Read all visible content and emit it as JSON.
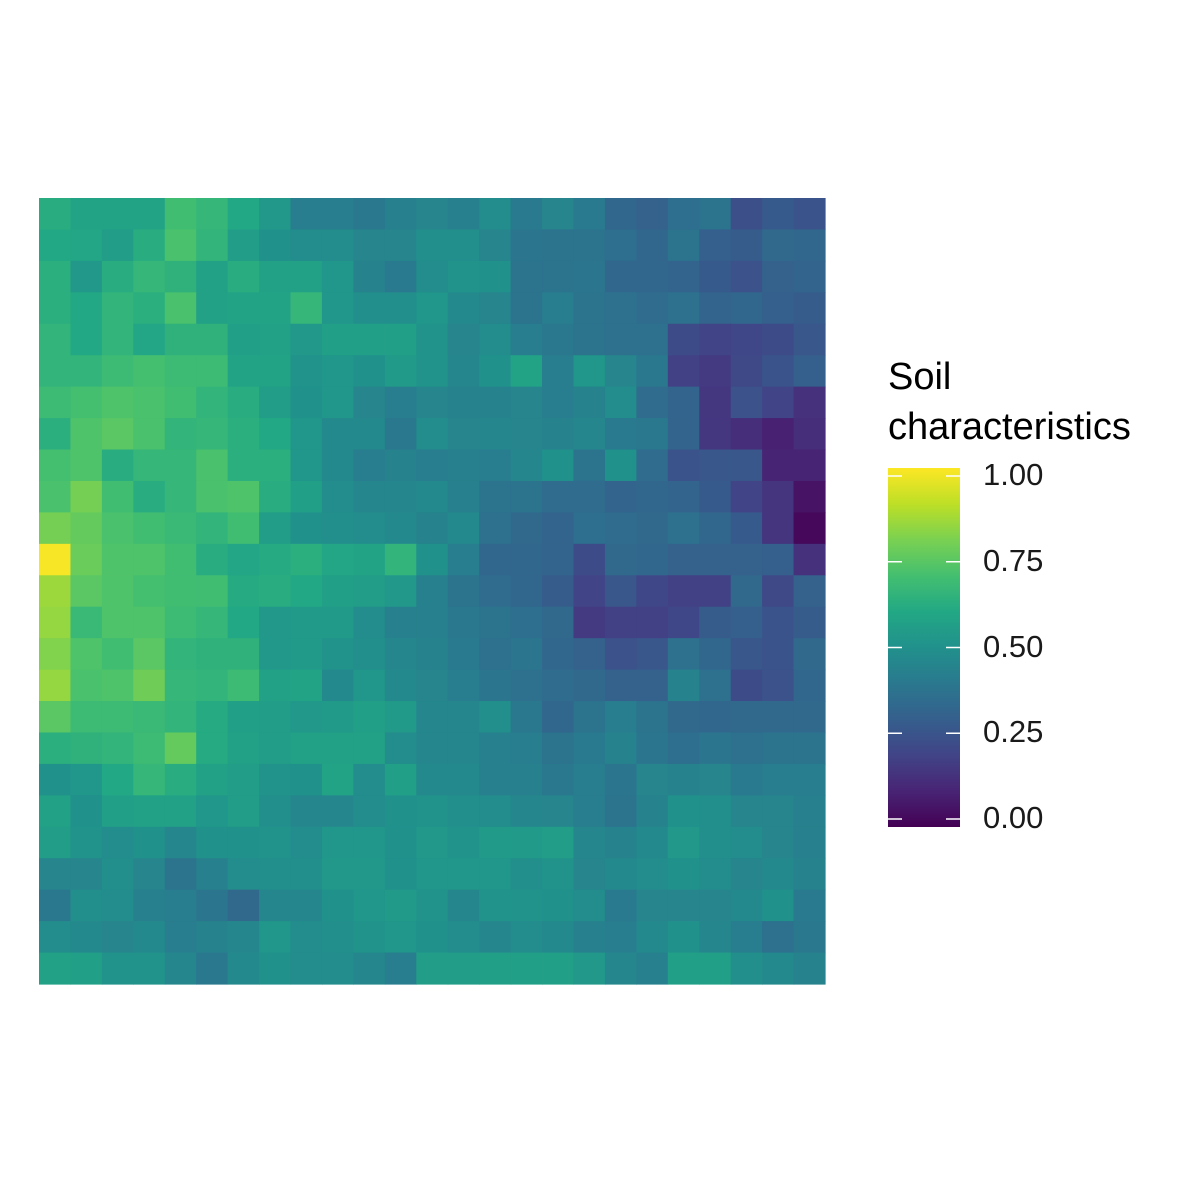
{
  "chart_data": {
    "type": "heatmap",
    "title": "",
    "xlabel": "",
    "ylabel": "",
    "grid": false,
    "legend": {
      "title_lines": [
        "Soil",
        "characteristics"
      ],
      "placement": "right",
      "ticks": [
        0.0,
        0.25,
        0.5,
        0.75,
        1.0
      ],
      "tick_labels": [
        "0.00",
        "0.25",
        "0.50",
        "0.75",
        "1.00"
      ],
      "range": [
        0,
        1
      ]
    },
    "colormap": [
      "#440154",
      "#482475",
      "#414487",
      "#355f8d",
      "#2a788e",
      "#21918c",
      "#22a884",
      "#44bf70",
      "#7ad151",
      "#bddf26",
      "#fde725"
    ],
    "n_cols": 25,
    "n_rows": 25,
    "values": [
      [
        0.62,
        0.58,
        0.58,
        0.58,
        0.69,
        0.66,
        0.6,
        0.53,
        0.42,
        0.42,
        0.4,
        0.43,
        0.45,
        0.43,
        0.48,
        0.41,
        0.45,
        0.41,
        0.33,
        0.31,
        0.36,
        0.38,
        0.24,
        0.28,
        0.26
      ],
      [
        0.6,
        0.59,
        0.55,
        0.62,
        0.71,
        0.65,
        0.55,
        0.5,
        0.48,
        0.48,
        0.45,
        0.45,
        0.49,
        0.49,
        0.45,
        0.39,
        0.38,
        0.38,
        0.36,
        0.33,
        0.38,
        0.3,
        0.29,
        0.34,
        0.33
      ],
      [
        0.63,
        0.53,
        0.62,
        0.66,
        0.64,
        0.57,
        0.62,
        0.57,
        0.57,
        0.52,
        0.44,
        0.41,
        0.48,
        0.51,
        0.5,
        0.38,
        0.38,
        0.39,
        0.33,
        0.33,
        0.32,
        0.28,
        0.25,
        0.31,
        0.32
      ],
      [
        0.63,
        0.6,
        0.65,
        0.63,
        0.71,
        0.57,
        0.58,
        0.58,
        0.66,
        0.52,
        0.49,
        0.49,
        0.52,
        0.47,
        0.45,
        0.38,
        0.42,
        0.38,
        0.37,
        0.35,
        0.37,
        0.32,
        0.33,
        0.3,
        0.29
      ],
      [
        0.65,
        0.6,
        0.65,
        0.59,
        0.64,
        0.64,
        0.56,
        0.57,
        0.53,
        0.56,
        0.56,
        0.56,
        0.51,
        0.45,
        0.48,
        0.42,
        0.4,
        0.38,
        0.37,
        0.37,
        0.23,
        0.2,
        0.21,
        0.23,
        0.27
      ],
      [
        0.65,
        0.65,
        0.68,
        0.7,
        0.68,
        0.68,
        0.58,
        0.58,
        0.51,
        0.52,
        0.5,
        0.54,
        0.51,
        0.46,
        0.5,
        0.58,
        0.42,
        0.52,
        0.45,
        0.4,
        0.19,
        0.17,
        0.22,
        0.26,
        0.3
      ],
      [
        0.68,
        0.7,
        0.72,
        0.71,
        0.69,
        0.65,
        0.62,
        0.55,
        0.5,
        0.52,
        0.45,
        0.42,
        0.45,
        0.44,
        0.44,
        0.45,
        0.42,
        0.44,
        0.48,
        0.35,
        0.32,
        0.16,
        0.25,
        0.2,
        0.14
      ],
      [
        0.63,
        0.72,
        0.74,
        0.71,
        0.65,
        0.66,
        0.63,
        0.6,
        0.52,
        0.47,
        0.47,
        0.4,
        0.48,
        0.45,
        0.46,
        0.45,
        0.44,
        0.46,
        0.41,
        0.4,
        0.32,
        0.16,
        0.13,
        0.09,
        0.13
      ],
      [
        0.7,
        0.72,
        0.62,
        0.66,
        0.66,
        0.71,
        0.63,
        0.63,
        0.52,
        0.47,
        0.42,
        0.44,
        0.42,
        0.43,
        0.42,
        0.46,
        0.5,
        0.38,
        0.5,
        0.35,
        0.26,
        0.27,
        0.27,
        0.1,
        0.1
      ],
      [
        0.71,
        0.79,
        0.69,
        0.62,
        0.66,
        0.71,
        0.72,
        0.62,
        0.56,
        0.48,
        0.46,
        0.46,
        0.47,
        0.43,
        0.38,
        0.38,
        0.35,
        0.35,
        0.32,
        0.33,
        0.32,
        0.28,
        0.2,
        0.15,
        0.05
      ],
      [
        0.79,
        0.76,
        0.71,
        0.69,
        0.67,
        0.65,
        0.69,
        0.55,
        0.5,
        0.49,
        0.48,
        0.47,
        0.44,
        0.47,
        0.37,
        0.34,
        0.32,
        0.36,
        0.35,
        0.34,
        0.37,
        0.33,
        0.28,
        0.15,
        0.02
      ],
      [
        0.99,
        0.77,
        0.72,
        0.72,
        0.69,
        0.62,
        0.59,
        0.61,
        0.63,
        0.59,
        0.58,
        0.65,
        0.5,
        0.42,
        0.33,
        0.33,
        0.32,
        0.23,
        0.34,
        0.33,
        0.31,
        0.31,
        0.31,
        0.3,
        0.14
      ],
      [
        0.85,
        0.74,
        0.72,
        0.7,
        0.69,
        0.69,
        0.61,
        0.62,
        0.6,
        0.56,
        0.55,
        0.53,
        0.43,
        0.38,
        0.35,
        0.33,
        0.29,
        0.2,
        0.27,
        0.21,
        0.19,
        0.19,
        0.34,
        0.22,
        0.31
      ],
      [
        0.84,
        0.67,
        0.72,
        0.72,
        0.68,
        0.66,
        0.6,
        0.53,
        0.54,
        0.54,
        0.48,
        0.43,
        0.43,
        0.4,
        0.38,
        0.36,
        0.34,
        0.17,
        0.19,
        0.19,
        0.21,
        0.29,
        0.3,
        0.26,
        0.29
      ],
      [
        0.81,
        0.72,
        0.69,
        0.74,
        0.65,
        0.64,
        0.64,
        0.53,
        0.54,
        0.51,
        0.49,
        0.46,
        0.44,
        0.41,
        0.37,
        0.39,
        0.33,
        0.31,
        0.25,
        0.27,
        0.37,
        0.33,
        0.27,
        0.26,
        0.34
      ],
      [
        0.84,
        0.71,
        0.72,
        0.78,
        0.66,
        0.65,
        0.68,
        0.57,
        0.58,
        0.47,
        0.52,
        0.47,
        0.45,
        0.42,
        0.39,
        0.37,
        0.35,
        0.34,
        0.31,
        0.31,
        0.44,
        0.37,
        0.23,
        0.25,
        0.33
      ],
      [
        0.74,
        0.68,
        0.68,
        0.67,
        0.65,
        0.61,
        0.56,
        0.55,
        0.53,
        0.54,
        0.56,
        0.54,
        0.46,
        0.46,
        0.49,
        0.4,
        0.33,
        0.38,
        0.42,
        0.38,
        0.34,
        0.33,
        0.34,
        0.34,
        0.34
      ],
      [
        0.63,
        0.64,
        0.65,
        0.68,
        0.76,
        0.61,
        0.57,
        0.55,
        0.57,
        0.57,
        0.57,
        0.48,
        0.46,
        0.46,
        0.43,
        0.42,
        0.38,
        0.41,
        0.44,
        0.39,
        0.36,
        0.39,
        0.37,
        0.38,
        0.38
      ],
      [
        0.5,
        0.52,
        0.6,
        0.66,
        0.62,
        0.57,
        0.55,
        0.51,
        0.5,
        0.58,
        0.48,
        0.56,
        0.47,
        0.47,
        0.43,
        0.43,
        0.4,
        0.42,
        0.39,
        0.45,
        0.44,
        0.45,
        0.41,
        0.42,
        0.42
      ],
      [
        0.57,
        0.5,
        0.56,
        0.57,
        0.57,
        0.52,
        0.55,
        0.49,
        0.46,
        0.46,
        0.48,
        0.5,
        0.51,
        0.49,
        0.48,
        0.46,
        0.45,
        0.42,
        0.38,
        0.44,
        0.5,
        0.49,
        0.45,
        0.45,
        0.43
      ],
      [
        0.55,
        0.51,
        0.48,
        0.5,
        0.46,
        0.5,
        0.5,
        0.51,
        0.48,
        0.52,
        0.52,
        0.5,
        0.53,
        0.51,
        0.54,
        0.54,
        0.55,
        0.46,
        0.44,
        0.47,
        0.53,
        0.49,
        0.48,
        0.45,
        0.43
      ],
      [
        0.45,
        0.45,
        0.49,
        0.45,
        0.38,
        0.43,
        0.48,
        0.49,
        0.49,
        0.53,
        0.53,
        0.5,
        0.52,
        0.52,
        0.52,
        0.49,
        0.51,
        0.45,
        0.47,
        0.48,
        0.5,
        0.48,
        0.45,
        0.47,
        0.44
      ],
      [
        0.4,
        0.49,
        0.48,
        0.43,
        0.42,
        0.39,
        0.34,
        0.46,
        0.46,
        0.5,
        0.52,
        0.54,
        0.51,
        0.46,
        0.51,
        0.51,
        0.5,
        0.48,
        0.41,
        0.45,
        0.45,
        0.45,
        0.47,
        0.5,
        0.41
      ],
      [
        0.48,
        0.47,
        0.45,
        0.47,
        0.42,
        0.44,
        0.46,
        0.52,
        0.48,
        0.49,
        0.51,
        0.52,
        0.5,
        0.48,
        0.46,
        0.48,
        0.47,
        0.43,
        0.42,
        0.47,
        0.5,
        0.46,
        0.42,
        0.37,
        0.4
      ],
      [
        0.57,
        0.56,
        0.51,
        0.51,
        0.46,
        0.4,
        0.47,
        0.5,
        0.48,
        0.48,
        0.46,
        0.42,
        0.55,
        0.55,
        0.56,
        0.56,
        0.56,
        0.53,
        0.46,
        0.43,
        0.56,
        0.56,
        0.49,
        0.47,
        0.44
      ]
    ]
  }
}
